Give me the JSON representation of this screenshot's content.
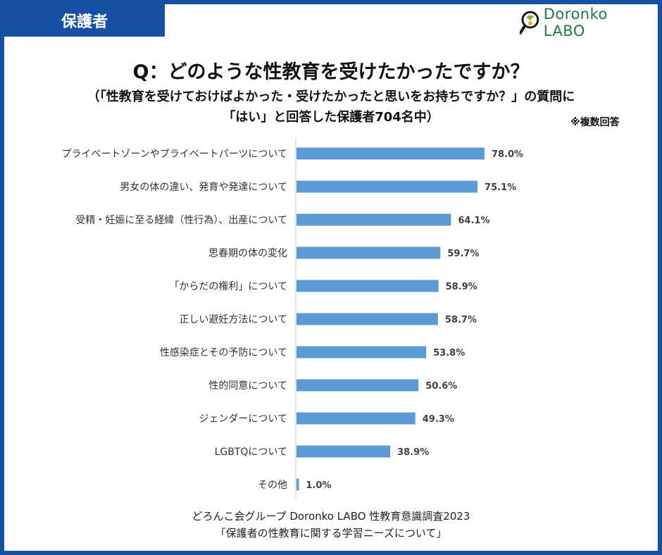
{
  "header": {
    "tag_label": "保護者",
    "logo_text": "Doronko LABO"
  },
  "title": "Q：どのような性教育を受けたかったですか？",
  "subtitle_line1": "（「性教育を受けておけばよかった・受けたかったと思いをお持ちですか？」の質問に",
  "subtitle_line2": "「はい」と回答した保護者704名中）",
  "note": "※複数回答",
  "footer_line1": "どろんこ会グループ Doronko LABO 性教育意識調査2023",
  "footer_line2": "「保護者の性教育に関する学習ニーズについて」",
  "colors": {
    "bar": "#5b9bd5",
    "frame": "#1450a3",
    "axis": "#c8c8c8",
    "logo": "#1f7a3c"
  },
  "chart_data": {
    "type": "bar",
    "orientation": "horizontal",
    "unit": "%",
    "xlim": [
      0,
      100
    ],
    "categories": [
      "プライベートゾーンやプライベートパーツについて",
      "男女の体の違い、発育や発達について",
      "受精・妊娠に至る経緯（性行為）、出産について",
      "思春期の体の変化",
      "「からだの権利」について",
      "正しい避妊方法について",
      "性感染症とその予防について",
      "性的同意について",
      "ジェンダーについて",
      "LGBTQについて",
      "その他"
    ],
    "values": [
      78.0,
      75.1,
      64.1,
      59.7,
      58.9,
      58.7,
      53.8,
      50.6,
      49.3,
      38.9,
      1.0
    ],
    "value_labels": [
      "78.0%",
      "75.1%",
      "64.1%",
      "59.7%",
      "58.9%",
      "58.7%",
      "53.8%",
      "50.6%",
      "49.3%",
      "38.9%",
      "1.0%"
    ]
  }
}
